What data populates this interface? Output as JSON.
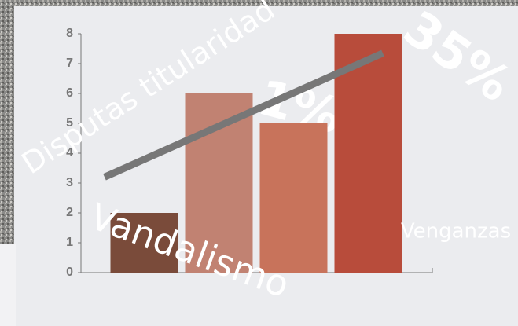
{
  "chart_data": {
    "type": "bar",
    "categories": [
      null,
      null,
      null,
      null
    ],
    "values": [
      2,
      6,
      5,
      8
    ],
    "colors": [
      "#7a4b3a",
      "#c18272",
      "#c8735b",
      "#b84c3b"
    ],
    "trend": {
      "values": [
        3.2,
        7.35
      ],
      "color": "#777777"
    },
    "ylim": [
      0,
      8
    ],
    "yticks": [
      0,
      1,
      2,
      3,
      4,
      5,
      6,
      7,
      8
    ],
    "annotations": [
      "Disputas titularidad",
      "Vandalismo",
      "Venganzas",
      "35%",
      "1%"
    ]
  }
}
